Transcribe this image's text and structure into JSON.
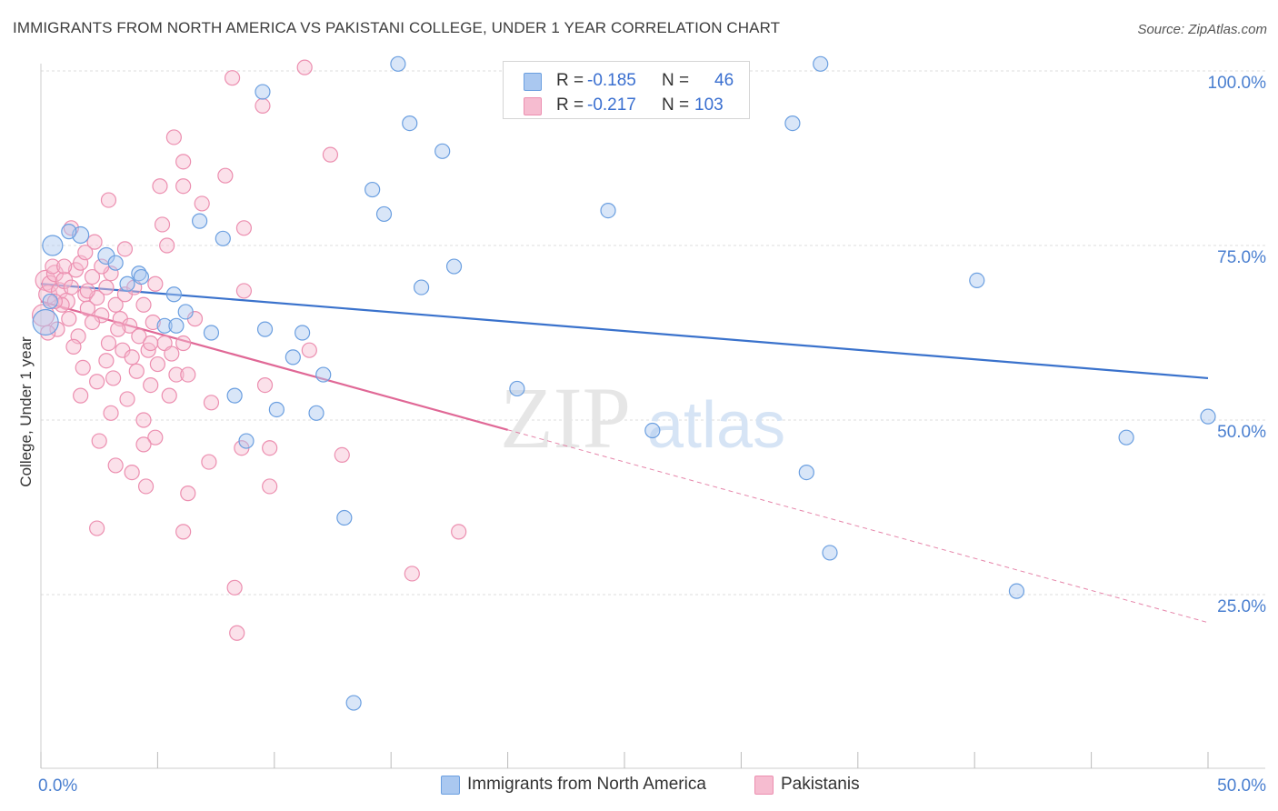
{
  "header": {
    "title": "IMMIGRANTS FROM NORTH AMERICA VS PAKISTANI COLLEGE, UNDER 1 YEAR CORRELATION CHART",
    "source": "Source: ZipAtlas.com"
  },
  "watermark": {
    "zip": "ZIP",
    "atlas": "atlas"
  },
  "legend": {
    "r_label": "R =",
    "n_label": "N =",
    "series": [
      {
        "r": "-0.185",
        "n": "46"
      },
      {
        "r": "-0.217",
        "n": "103"
      }
    ]
  },
  "colors": {
    "blue_fill": "#aac8f0",
    "blue_stroke": "#6b9fe0",
    "blue_line": "#3a72cc",
    "pink_fill": "#f6bcd0",
    "pink_stroke": "#ec8fb0",
    "pink_line": "#e06896",
    "axis_label": "#4a7fd0",
    "grid": "#dddddd"
  },
  "chart_data": {
    "type": "scatter",
    "title": "IMMIGRANTS FROM NORTH AMERICA VS PAKISTANI COLLEGE, UNDER 1 YEAR CORRELATION CHART",
    "xlabel": "",
    "ylabel": "College, Under 1 year",
    "xlim": [
      0,
      50
    ],
    "ylim": [
      0,
      102
    ],
    "x_tick_labels": [
      {
        "value": 0,
        "label": "0.0%"
      },
      {
        "value": 50,
        "label": "50.0%"
      }
    ],
    "y_tick_labels": [
      {
        "value": 100,
        "label": "100.0%"
      },
      {
        "value": 75,
        "label": "75.0%"
      },
      {
        "value": 50,
        "label": "50.0%"
      },
      {
        "value": 25,
        "label": "25.0%"
      }
    ],
    "series": [
      {
        "name": "Immigrants from North America",
        "color": "blue",
        "trend": {
          "x0": 0,
          "y0": 69.5,
          "x1": 50,
          "y1": 56.0,
          "dashed_from": null
        },
        "points": [
          {
            "x": 0.5,
            "y": 75.0,
            "s": 11
          },
          {
            "x": 1.7,
            "y": 76.5,
            "s": 9
          },
          {
            "x": 2.8,
            "y": 73.5,
            "s": 9
          },
          {
            "x": 1.2,
            "y": 77.0,
            "s": 8
          },
          {
            "x": 4.2,
            "y": 71.0,
            "s": 8
          },
          {
            "x": 5.7,
            "y": 68.0,
            "s": 8
          },
          {
            "x": 6.2,
            "y": 65.5,
            "s": 8
          },
          {
            "x": 5.3,
            "y": 63.5,
            "s": 8
          },
          {
            "x": 3.2,
            "y": 72.5,
            "s": 8
          },
          {
            "x": 3.7,
            "y": 69.5,
            "s": 8
          },
          {
            "x": 4.3,
            "y": 70.5,
            "s": 8
          },
          {
            "x": 6.8,
            "y": 78.5,
            "s": 8
          },
          {
            "x": 7.8,
            "y": 76.0,
            "s": 8
          },
          {
            "x": 9.5,
            "y": 97.0,
            "s": 8
          },
          {
            "x": 15.3,
            "y": 101.0,
            "s": 8
          },
          {
            "x": 15.8,
            "y": 92.5,
            "s": 8
          },
          {
            "x": 17.2,
            "y": 88.5,
            "s": 8
          },
          {
            "x": 14.2,
            "y": 83.0,
            "s": 8
          },
          {
            "x": 14.7,
            "y": 79.5,
            "s": 8
          },
          {
            "x": 17.7,
            "y": 72.0,
            "s": 8
          },
          {
            "x": 16.3,
            "y": 69.0,
            "s": 8
          },
          {
            "x": 24.3,
            "y": 80.0,
            "s": 8
          },
          {
            "x": 33.4,
            "y": 101.0,
            "s": 8
          },
          {
            "x": 32.2,
            "y": 92.5,
            "s": 8
          },
          {
            "x": 40.1,
            "y": 70.0,
            "s": 8
          },
          {
            "x": 5.8,
            "y": 63.5,
            "s": 8
          },
          {
            "x": 7.3,
            "y": 62.5,
            "s": 8
          },
          {
            "x": 9.6,
            "y": 63.0,
            "s": 8
          },
          {
            "x": 11.2,
            "y": 62.5,
            "s": 8
          },
          {
            "x": 10.8,
            "y": 59.0,
            "s": 8
          },
          {
            "x": 12.1,
            "y": 56.5,
            "s": 8
          },
          {
            "x": 8.3,
            "y": 53.5,
            "s": 8
          },
          {
            "x": 10.1,
            "y": 51.5,
            "s": 8
          },
          {
            "x": 11.8,
            "y": 51.0,
            "s": 8
          },
          {
            "x": 8.8,
            "y": 47.0,
            "s": 8
          },
          {
            "x": 20.4,
            "y": 54.5,
            "s": 8
          },
          {
            "x": 26.2,
            "y": 48.5,
            "s": 8
          },
          {
            "x": 13.0,
            "y": 36.0,
            "s": 8
          },
          {
            "x": 32.8,
            "y": 42.5,
            "s": 8
          },
          {
            "x": 33.8,
            "y": 31.0,
            "s": 8
          },
          {
            "x": 41.8,
            "y": 25.5,
            "s": 8
          },
          {
            "x": 46.5,
            "y": 47.5,
            "s": 8
          },
          {
            "x": 50.0,
            "y": 50.5,
            "s": 8
          },
          {
            "x": 13.4,
            "y": 9.5,
            "s": 8
          },
          {
            "x": 0.2,
            "y": 64.0,
            "s": 14
          },
          {
            "x": 0.4,
            "y": 67.0,
            "s": 8
          }
        ]
      },
      {
        "name": "Pakistanis",
        "color": "pink",
        "trend": {
          "x0": 0,
          "y0": 67.0,
          "x1": 50,
          "y1": 21.0,
          "dashed_from": 20
        },
        "points": [
          {
            "x": 0.1,
            "y": 65.0,
            "s": 12
          },
          {
            "x": 0.2,
            "y": 70.0,
            "s": 11
          },
          {
            "x": 0.3,
            "y": 68.0,
            "s": 10
          },
          {
            "x": 0.4,
            "y": 69.5,
            "s": 9
          },
          {
            "x": 0.6,
            "y": 71.0,
            "s": 9
          },
          {
            "x": 0.8,
            "y": 68.5,
            "s": 9
          },
          {
            "x": 1.0,
            "y": 70.0,
            "s": 9
          },
          {
            "x": 1.1,
            "y": 67.0,
            "s": 9
          },
          {
            "x": 1.3,
            "y": 69.0,
            "s": 8
          },
          {
            "x": 1.5,
            "y": 71.5,
            "s": 8
          },
          {
            "x": 1.7,
            "y": 72.5,
            "s": 8
          },
          {
            "x": 1.9,
            "y": 68.0,
            "s": 8
          },
          {
            "x": 2.0,
            "y": 66.0,
            "s": 8
          },
          {
            "x": 2.2,
            "y": 70.5,
            "s": 8
          },
          {
            "x": 2.4,
            "y": 67.5,
            "s": 8
          },
          {
            "x": 2.6,
            "y": 65.0,
            "s": 8
          },
          {
            "x": 2.8,
            "y": 69.0,
            "s": 8
          },
          {
            "x": 3.0,
            "y": 71.0,
            "s": 8
          },
          {
            "x": 3.2,
            "y": 66.5,
            "s": 8
          },
          {
            "x": 3.4,
            "y": 64.5,
            "s": 8
          },
          {
            "x": 3.6,
            "y": 68.0,
            "s": 8
          },
          {
            "x": 3.8,
            "y": 63.5,
            "s": 8
          },
          {
            "x": 4.0,
            "y": 69.0,
            "s": 8
          },
          {
            "x": 4.2,
            "y": 62.0,
            "s": 8
          },
          {
            "x": 4.4,
            "y": 66.5,
            "s": 8
          },
          {
            "x": 4.6,
            "y": 60.0,
            "s": 8
          },
          {
            "x": 4.8,
            "y": 64.0,
            "s": 8
          },
          {
            "x": 5.0,
            "y": 58.0,
            "s": 8
          },
          {
            "x": 1.6,
            "y": 62.0,
            "s": 8
          },
          {
            "x": 1.8,
            "y": 57.5,
            "s": 8
          },
          {
            "x": 1.7,
            "y": 53.5,
            "s": 8
          },
          {
            "x": 2.4,
            "y": 55.5,
            "s": 8
          },
          {
            "x": 2.9,
            "y": 61.0,
            "s": 8
          },
          {
            "x": 3.1,
            "y": 56.0,
            "s": 8
          },
          {
            "x": 3.0,
            "y": 51.0,
            "s": 8
          },
          {
            "x": 3.5,
            "y": 60.0,
            "s": 8
          },
          {
            "x": 3.7,
            "y": 53.0,
            "s": 8
          },
          {
            "x": 4.1,
            "y": 57.0,
            "s": 8
          },
          {
            "x": 4.4,
            "y": 50.0,
            "s": 8
          },
          {
            "x": 4.7,
            "y": 55.0,
            "s": 8
          },
          {
            "x": 4.9,
            "y": 47.5,
            "s": 8
          },
          {
            "x": 5.3,
            "y": 61.0,
            "s": 8
          },
          {
            "x": 5.5,
            "y": 53.5,
            "s": 8
          },
          {
            "x": 5.8,
            "y": 56.5,
            "s": 8
          },
          {
            "x": 6.1,
            "y": 61.0,
            "s": 8
          },
          {
            "x": 6.3,
            "y": 56.5,
            "s": 8
          },
          {
            "x": 2.5,
            "y": 47.0,
            "s": 8
          },
          {
            "x": 3.2,
            "y": 43.5,
            "s": 8
          },
          {
            "x": 3.9,
            "y": 42.5,
            "s": 8
          },
          {
            "x": 4.5,
            "y": 40.5,
            "s": 8
          },
          {
            "x": 4.4,
            "y": 46.5,
            "s": 8
          },
          {
            "x": 2.4,
            "y": 34.5,
            "s": 8
          },
          {
            "x": 6.3,
            "y": 39.5,
            "s": 8
          },
          {
            "x": 6.1,
            "y": 34.0,
            "s": 8
          },
          {
            "x": 7.2,
            "y": 44.0,
            "s": 8
          },
          {
            "x": 7.3,
            "y": 52.5,
            "s": 8
          },
          {
            "x": 8.6,
            "y": 46.0,
            "s": 8
          },
          {
            "x": 9.6,
            "y": 55.0,
            "s": 8
          },
          {
            "x": 9.8,
            "y": 46.0,
            "s": 8
          },
          {
            "x": 9.8,
            "y": 40.5,
            "s": 8
          },
          {
            "x": 11.5,
            "y": 60.0,
            "s": 8
          },
          {
            "x": 12.9,
            "y": 45.0,
            "s": 8
          },
          {
            "x": 17.9,
            "y": 34.0,
            "s": 8
          },
          {
            "x": 15.9,
            "y": 28.0,
            "s": 8
          },
          {
            "x": 8.3,
            "y": 26.0,
            "s": 8
          },
          {
            "x": 8.4,
            "y": 19.5,
            "s": 8
          },
          {
            "x": 1.3,
            "y": 77.5,
            "s": 8
          },
          {
            "x": 2.3,
            "y": 75.5,
            "s": 8
          },
          {
            "x": 2.9,
            "y": 81.5,
            "s": 8
          },
          {
            "x": 4.9,
            "y": 69.5,
            "s": 8
          },
          {
            "x": 5.1,
            "y": 83.5,
            "s": 8
          },
          {
            "x": 5.2,
            "y": 78.0,
            "s": 8
          },
          {
            "x": 5.4,
            "y": 75.0,
            "s": 8
          },
          {
            "x": 5.7,
            "y": 90.5,
            "s": 8
          },
          {
            "x": 6.1,
            "y": 87.0,
            "s": 8
          },
          {
            "x": 6.1,
            "y": 83.5,
            "s": 8
          },
          {
            "x": 6.9,
            "y": 81.0,
            "s": 8
          },
          {
            "x": 7.9,
            "y": 85.0,
            "s": 8
          },
          {
            "x": 8.2,
            "y": 99.0,
            "s": 8
          },
          {
            "x": 8.7,
            "y": 77.5,
            "s": 8
          },
          {
            "x": 9.5,
            "y": 95.0,
            "s": 8
          },
          {
            "x": 11.3,
            "y": 100.5,
            "s": 8
          },
          {
            "x": 12.4,
            "y": 88.0,
            "s": 8
          },
          {
            "x": 8.7,
            "y": 68.5,
            "s": 8
          },
          {
            "x": 1.2,
            "y": 64.5,
            "s": 8
          },
          {
            "x": 2.0,
            "y": 68.5,
            "s": 8
          },
          {
            "x": 2.6,
            "y": 72.0,
            "s": 8
          },
          {
            "x": 0.9,
            "y": 66.5,
            "s": 8
          },
          {
            "x": 0.5,
            "y": 72.0,
            "s": 8
          },
          {
            "x": 0.7,
            "y": 63.0,
            "s": 8
          },
          {
            "x": 1.4,
            "y": 60.5,
            "s": 8
          },
          {
            "x": 2.2,
            "y": 64.0,
            "s": 8
          },
          {
            "x": 2.8,
            "y": 58.5,
            "s": 8
          },
          {
            "x": 3.3,
            "y": 63.0,
            "s": 8
          },
          {
            "x": 3.9,
            "y": 59.0,
            "s": 8
          },
          {
            "x": 4.7,
            "y": 61.0,
            "s": 8
          },
          {
            "x": 5.6,
            "y": 59.5,
            "s": 8
          },
          {
            "x": 6.6,
            "y": 64.5,
            "s": 8
          },
          {
            "x": 0.3,
            "y": 62.5,
            "s": 8
          },
          {
            "x": 0.6,
            "y": 67.0,
            "s": 8
          },
          {
            "x": 1.0,
            "y": 72.0,
            "s": 8
          },
          {
            "x": 1.9,
            "y": 74.0,
            "s": 8
          },
          {
            "x": 3.6,
            "y": 74.5,
            "s": 8
          }
        ]
      }
    ]
  },
  "bottom_legend": {
    "items": [
      "Immigrants from North America",
      "Pakistanis"
    ]
  }
}
